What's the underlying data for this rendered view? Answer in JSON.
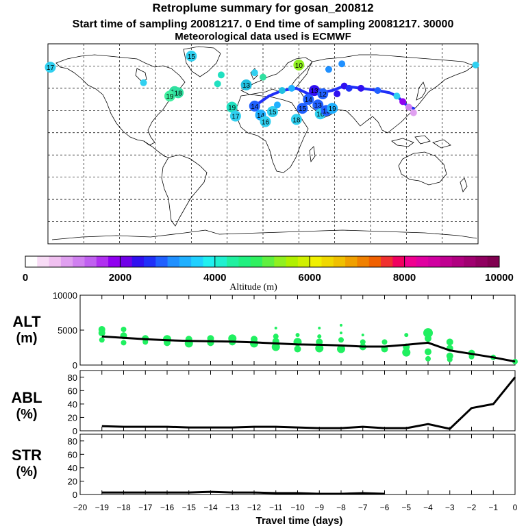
{
  "header": {
    "title": "Retroplume summary for gosan_200812",
    "sampling_line": "Start time of sampling 20081217.     0     End time of sampling 20081217. 30000",
    "met_line": "Meteorological data used is ECMWF"
  },
  "colorbar": {
    "label": "Altitude (m)",
    "ticks": [
      "0",
      "2000",
      "4000",
      "6000",
      "8000",
      "10000"
    ],
    "colors": [
      "#ffffff",
      "#f8dcf6",
      "#f0c0f0",
      "#e0a0f0",
      "#d080f0",
      "#c060f0",
      "#b030f0",
      "#9000f0",
      "#7000e8",
      "#3010f0",
      "#2030f8",
      "#2060ff",
      "#2090ff",
      "#20b0ff",
      "#20d0ff",
      "#20f0f0",
      "#20f0d0",
      "#20f0a0",
      "#20f080",
      "#30f060",
      "#60f040",
      "#90f020",
      "#b0f000",
      "#d0f000",
      "#f0f000",
      "#f0d800",
      "#f0c000",
      "#f0a000",
      "#f08000",
      "#f06000",
      "#f03030",
      "#f00060",
      "#f00090",
      "#e000a0",
      "#d000a0",
      "#c00090",
      "#b00080",
      "#a00070",
      "#900060",
      "#800050"
    ]
  },
  "map": {
    "markers": [
      {
        "lon": -178,
        "lat": 69,
        "label": "17",
        "color": "#30d0f0"
      },
      {
        "lon": -74,
        "lat": 47,
        "label": "17",
        "color": "#30e0a0"
      },
      {
        "lon": -78,
        "lat": 43,
        "label": "19",
        "color": "#40f0a0"
      },
      {
        "lon": -71,
        "lat": 46,
        "label": "18",
        "color": "#30e0a0"
      },
      {
        "lon": -26,
        "lat": 33,
        "label": "19",
        "color": "#20e0c0"
      },
      {
        "lon": -23,
        "lat": 25,
        "label": "17",
        "color": "#30d0f0"
      },
      {
        "lon": -38,
        "lat": 54,
        "label": "",
        "color": "#20e0c0"
      },
      {
        "lon": -60,
        "lat": 79,
        "label": "15",
        "color": "#30d0f0"
      },
      {
        "lon": -7,
        "lat": 34,
        "label": "14",
        "color": "#2060ff"
      },
      {
        "lon": -2,
        "lat": 26,
        "label": "14",
        "color": "#20b0ff"
      },
      {
        "lon": 2,
        "lat": 20,
        "label": "16",
        "color": "#30d0f0"
      },
      {
        "lon": 8,
        "lat": 29,
        "label": "15",
        "color": "#30d0f0"
      },
      {
        "lon": 12,
        "lat": 35,
        "label": "",
        "color": "#20b0ff"
      },
      {
        "lon": 16,
        "lat": 48,
        "label": "",
        "color": "#20c0e0"
      },
      {
        "lon": 24,
        "lat": 50,
        "label": "",
        "color": "#20b0ff"
      },
      {
        "lon": 28,
        "lat": 22,
        "label": "18",
        "color": "#30d0f0"
      },
      {
        "lon": 33,
        "lat": 32,
        "label": "15",
        "color": "#2060ff"
      },
      {
        "lon": 38,
        "lat": 40,
        "label": "14",
        "color": "#2060ff"
      },
      {
        "lon": 43,
        "lat": 48,
        "label": "13",
        "color": "#3010f0"
      },
      {
        "lon": 46,
        "lat": 35,
        "label": "13",
        "color": "#2060ff"
      },
      {
        "lon": 48,
        "lat": 27,
        "label": "16",
        "color": "#30d0f0"
      },
      {
        "lon": 50,
        "lat": 45,
        "label": "12",
        "color": "#2060ff"
      },
      {
        "lon": 53,
        "lat": 30,
        "label": "13",
        "color": "#2060ff"
      },
      {
        "lon": 58,
        "lat": 32,
        "label": "19",
        "color": "#20b0ff"
      },
      {
        "lon": 62,
        "lat": 45,
        "label": "",
        "color": "#3010f0"
      },
      {
        "lon": 68,
        "lat": 52,
        "label": "",
        "color": "#3010f0"
      },
      {
        "lon": 72,
        "lat": 50,
        "label": "",
        "color": "#2030f8"
      },
      {
        "lon": 82,
        "lat": 50,
        "label": "",
        "color": "#3010f0"
      },
      {
        "lon": 96,
        "lat": 48,
        "label": "",
        "color": "#2060ff"
      },
      {
        "lon": 112,
        "lat": 43,
        "label": "",
        "color": "#30d0f0"
      },
      {
        "lon": 117,
        "lat": 38,
        "label": "",
        "color": "#9000f0"
      },
      {
        "lon": 122,
        "lat": 33,
        "label": "",
        "color": "#d080f0"
      },
      {
        "lon": 126,
        "lat": 28,
        "label": "",
        "color": "#e0a0f0"
      },
      {
        "lon": 30,
        "lat": 71,
        "label": "10",
        "color": "#90f020"
      },
      {
        "lon": 55,
        "lat": 67,
        "label": "",
        "color": "#2090ff"
      },
      {
        "lon": 66,
        "lat": 72,
        "label": "",
        "color": "#2090ff"
      },
      {
        "lon": -35,
        "lat": 62,
        "label": "",
        "color": "#20e0c0"
      },
      {
        "lon": -14,
        "lat": 53,
        "label": "13",
        "color": "#20c0e0"
      },
      {
        "lon": 0,
        "lat": 60,
        "label": "",
        "color": "#30e0a0"
      },
      {
        "lon": -7,
        "lat": 64,
        "label": "",
        "color": "#30d0f0"
      },
      {
        "lon": -100,
        "lat": 55,
        "label": "",
        "color": "#30d0f0"
      },
      {
        "lon": 178,
        "lat": 71,
        "label": "",
        "color": "#30d0f0"
      }
    ],
    "track": [
      [
        -7,
        34
      ],
      [
        5,
        43
      ],
      [
        16,
        48
      ],
      [
        28,
        50
      ],
      [
        38,
        45
      ],
      [
        48,
        46
      ],
      [
        58,
        48
      ],
      [
        68,
        52
      ],
      [
        82,
        50
      ],
      [
        96,
        48
      ],
      [
        106,
        46
      ],
      [
        112,
        43
      ],
      [
        117,
        38
      ],
      [
        122,
        33
      ],
      [
        126,
        32
      ]
    ]
  },
  "panels": {
    "alt_label": [
      "ALT",
      "(m)"
    ],
    "abl_label": [
      "ABL",
      "(%)"
    ],
    "str_label": [
      "STR",
      "(%)"
    ]
  },
  "chart_data": {
    "type": "line",
    "xlabel": "Travel time (days)",
    "x_ticks": [
      "−20",
      "−19",
      "−18",
      "−17",
      "−16",
      "−15",
      "−14",
      "−13",
      "−12",
      "−11",
      "−10",
      "−9",
      "−8",
      "−7",
      "−6",
      "−5",
      "−4",
      "−3",
      "−2",
      "−1",
      "0"
    ],
    "xlim": [
      -20,
      0
    ],
    "alt": {
      "ylabel": "ALT (m)",
      "ylim": [
        0,
        10000
      ],
      "y_ticks": [
        "0",
        "5000",
        "10000"
      ],
      "x": [
        -19,
        -18,
        -17,
        -16,
        -15,
        -14,
        -13,
        -12,
        -11,
        -10,
        -9,
        -8,
        -7,
        -6,
        -5,
        -4,
        -3,
        -2,
        -1,
        0
      ],
      "values": [
        4100,
        3900,
        3700,
        3550,
        3450,
        3400,
        3350,
        3250,
        3100,
        2950,
        2900,
        2800,
        2650,
        2650,
        2900,
        3200,
        2100,
        1600,
        1100,
        500
      ],
      "dots": [
        [
          -19,
          5100,
          5
        ],
        [
          -19,
          4600,
          5
        ],
        [
          -19,
          3600,
          4
        ],
        [
          -18,
          5100,
          4
        ],
        [
          -18,
          4200,
          5
        ],
        [
          -18,
          3200,
          4
        ],
        [
          -17,
          3800,
          5
        ],
        [
          -17,
          3300,
          4
        ],
        [
          -16,
          3700,
          6
        ],
        [
          -16,
          3200,
          5
        ],
        [
          -15,
          3700,
          5
        ],
        [
          -15,
          3100,
          6
        ],
        [
          -14,
          3800,
          5
        ],
        [
          -14,
          3200,
          5
        ],
        [
          -13,
          3800,
          6
        ],
        [
          -13,
          3300,
          5
        ],
        [
          -12,
          3700,
          5
        ],
        [
          -12,
          3100,
          6
        ],
        [
          -11,
          5300,
          2
        ],
        [
          -11,
          4100,
          4
        ],
        [
          -11,
          3400,
          5
        ],
        [
          -11,
          2600,
          6
        ],
        [
          -10,
          4300,
          3
        ],
        [
          -10,
          3300,
          6
        ],
        [
          -10,
          2300,
          5
        ],
        [
          -9,
          5300,
          2
        ],
        [
          -9,
          4100,
          3
        ],
        [
          -9,
          3300,
          5
        ],
        [
          -9,
          2400,
          6
        ],
        [
          -8,
          5700,
          2
        ],
        [
          -8,
          4600,
          2
        ],
        [
          -8,
          3600,
          4
        ],
        [
          -8,
          2300,
          6
        ],
        [
          -7,
          4300,
          2
        ],
        [
          -7,
          3300,
          4
        ],
        [
          -7,
          2600,
          5
        ],
        [
          -6,
          3300,
          4
        ],
        [
          -6,
          2300,
          5
        ],
        [
          -5,
          4300,
          3
        ],
        [
          -5,
          2600,
          5
        ],
        [
          -5,
          1800,
          6
        ],
        [
          -4,
          4600,
          7
        ],
        [
          -4,
          3800,
          5
        ],
        [
          -4,
          1900,
          5
        ],
        [
          -4,
          900,
          4
        ],
        [
          -3,
          3300,
          5
        ],
        [
          -3,
          2400,
          5
        ],
        [
          -3,
          1300,
          5
        ],
        [
          -3,
          800,
          4
        ],
        [
          -2,
          1700,
          5
        ],
        [
          -2,
          1200,
          4
        ],
        [
          -1,
          1100,
          4
        ],
        [
          0,
          500,
          4
        ]
      ]
    },
    "abl": {
      "ylabel": "ABL (%)",
      "ylim": [
        0,
        90
      ],
      "y_ticks": [
        "0",
        "20",
        "40",
        "60",
        "80"
      ],
      "x": [
        -19,
        -18,
        -17,
        -16,
        -15,
        -14,
        -13,
        -12,
        -11,
        -10,
        -9,
        -8,
        -7,
        -6,
        -5,
        -4,
        -3,
        -2,
        -1,
        0
      ],
      "values": [
        7,
        6,
        6,
        6,
        5,
        5,
        5,
        6,
        6,
        5,
        4,
        4,
        6,
        4,
        4,
        10,
        3,
        34,
        40,
        80
      ]
    },
    "str": {
      "ylabel": "STR (%)",
      "ylim": [
        0,
        90
      ],
      "y_ticks": [
        "0",
        "20",
        "40",
        "60",
        "80"
      ],
      "x": [
        -19,
        -18,
        -17,
        -16,
        -15,
        -14,
        -13,
        -12,
        -11,
        -10,
        -9,
        -8,
        -7,
        -6
      ],
      "values": [
        3,
        3,
        3,
        3,
        3,
        4,
        3,
        3,
        2,
        2,
        1,
        1,
        2,
        1
      ]
    }
  }
}
